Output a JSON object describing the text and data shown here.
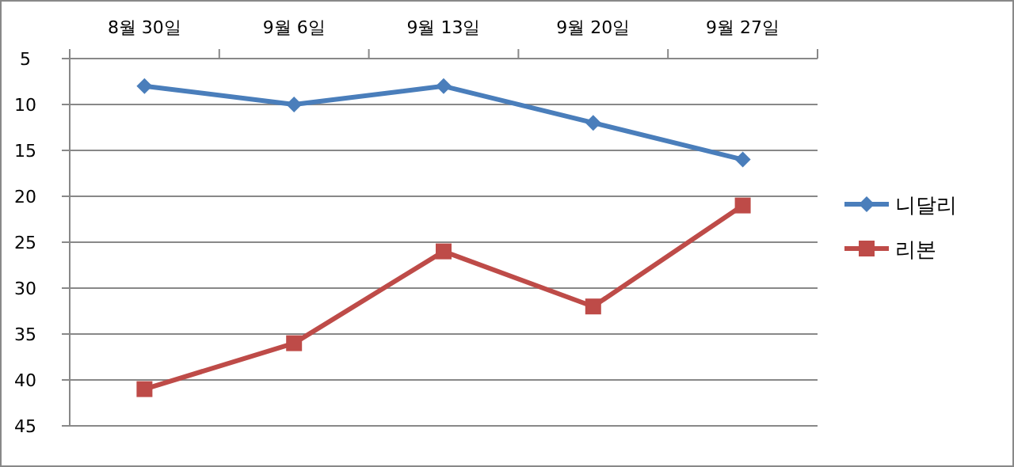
{
  "chart_data": {
    "type": "line",
    "categories": [
      "8월 30일",
      "9월 6일",
      "9월 13일",
      "9월 20일",
      "9월 27일"
    ],
    "ylim": [
      45,
      5
    ],
    "yticks": [
      5,
      10,
      15,
      20,
      25,
      30,
      35,
      40,
      45
    ],
    "grid": "y",
    "legend": "right",
    "line_style": "solid",
    "series": [
      {
        "name": "니달리",
        "color": "#4a7ebb",
        "marker": "diamond",
        "values": [
          8,
          10,
          8,
          12,
          16
        ]
      },
      {
        "name": "리본",
        "color": "#be4b48",
        "marker": "square",
        "values": [
          41,
          36,
          26,
          32,
          21
        ]
      }
    ]
  }
}
